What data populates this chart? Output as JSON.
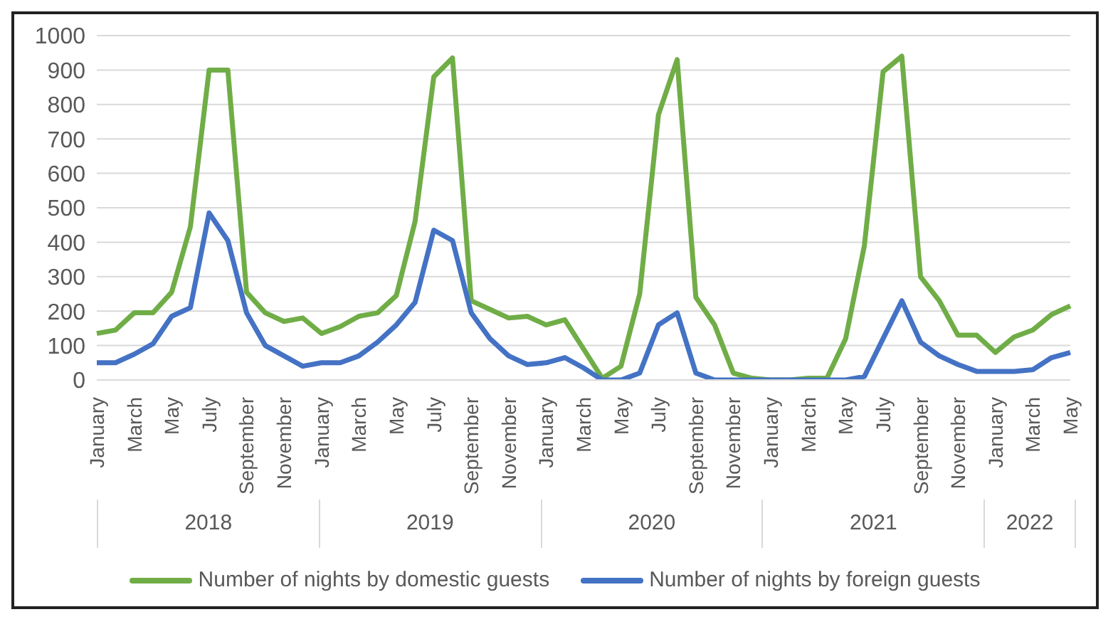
{
  "chart_data": {
    "type": "line",
    "categories": [
      "January",
      null,
      "March",
      null,
      "May",
      null,
      "July",
      null,
      "September",
      null,
      "November",
      null,
      "January",
      null,
      "March",
      null,
      "May",
      null,
      "July",
      null,
      "September",
      null,
      "November",
      null,
      "January",
      null,
      "March",
      null,
      "May",
      null,
      "July",
      null,
      "September",
      null,
      "November",
      null,
      "January",
      null,
      "March",
      null,
      "May",
      null,
      "July",
      null,
      "September",
      null,
      "November",
      null,
      "January",
      null,
      "March",
      null,
      "May"
    ],
    "series": [
      {
        "name": "Number of nights by domestic guests",
        "color": "#70ad47",
        "values": [
          135,
          145,
          195,
          195,
          255,
          445,
          900,
          900,
          255,
          195,
          170,
          180,
          135,
          155,
          185,
          195,
          245,
          460,
          880,
          935,
          230,
          205,
          180,
          185,
          160,
          175,
          90,
          5,
          40,
          250,
          770,
          930,
          240,
          160,
          20,
          5,
          0,
          0,
          5,
          5,
          120,
          390,
          895,
          940,
          300,
          230,
          130,
          130,
          80,
          125,
          145,
          190,
          215
        ]
      },
      {
        "name": "Number of nights by foreign guests",
        "color": "#4472c4",
        "values": [
          50,
          50,
          75,
          105,
          185,
          210,
          485,
          405,
          195,
          100,
          70,
          40,
          50,
          50,
          70,
          110,
          160,
          225,
          435,
          405,
          195,
          120,
          70,
          45,
          50,
          65,
          35,
          0,
          0,
          20,
          160,
          195,
          20,
          0,
          0,
          0,
          0,
          0,
          0,
          0,
          0,
          10,
          120,
          230,
          110,
          70,
          45,
          25,
          25,
          25,
          30,
          65,
          80
        ]
      }
    ],
    "annotations": [
      "2018",
      "2019",
      "2020",
      "2021",
      "2022"
    ],
    "ylim": [
      0,
      1000
    ],
    "yticks": [
      0,
      100,
      200,
      300,
      400,
      500,
      600,
      700,
      800,
      900,
      1000
    ],
    "grid": "y",
    "legend": "bottom",
    "marker": "none",
    "line_style": "solid"
  }
}
